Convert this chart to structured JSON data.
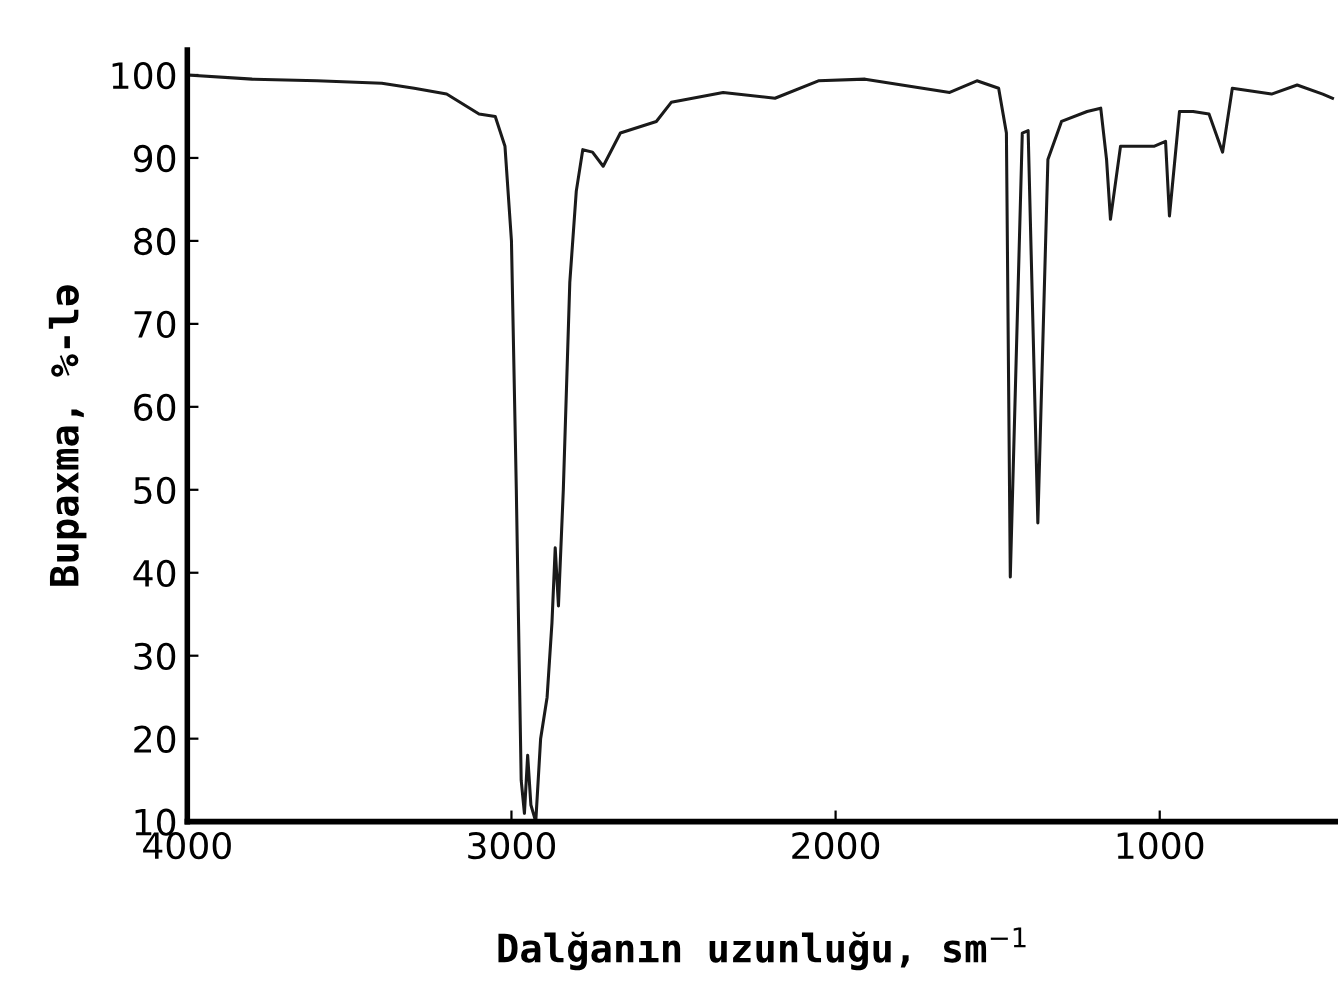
{
  "chart_data": {
    "type": "line",
    "xlabel": "Dalğanın uzunluğu, sm$^{−1}$",
    "ylabel": "Bupaxma, %-lə",
    "xlim": [
      4000,
      450
    ],
    "ylim": [
      10,
      103
    ],
    "xticks": [
      4000,
      3000,
      2000,
      1000
    ],
    "yticks": [
      10,
      20,
      30,
      40,
      50,
      60,
      70,
      80,
      90,
      100
    ],
    "grid": false,
    "legend": false,
    "marker": "none",
    "line_style": "solid",
    "series": [
      {
        "color": "#1a1a1a",
        "x": [
          4000,
          3800,
          3600,
          3400,
          3300,
          3200,
          3100,
          3050,
          3020,
          3000,
          2985,
          2970,
          2960,
          2950,
          2940,
          2925,
          2910,
          2890,
          2875,
          2865,
          2855,
          2840,
          2820,
          2800,
          2780,
          2750,
          2717,
          2664,
          2553,
          2507,
          2347,
          2187,
          2053,
          1909,
          1648,
          1564,
          1497,
          1473,
          1461,
          1424,
          1406,
          1376,
          1345,
          1303,
          1224,
          1182,
          1164,
          1152,
          1121,
          1018,
          982,
          970,
          939,
          897,
          848,
          806,
          776,
          655,
          576,
          497,
          467
        ],
        "values": [
          100,
          99.5,
          99.3,
          99,
          98.4,
          97.7,
          95.3,
          95,
          91.4,
          80,
          50,
          15,
          11,
          18,
          12,
          10,
          20,
          25,
          34,
          43,
          36,
          50,
          75,
          86,
          91,
          90.7,
          89,
          93,
          94.4,
          96.7,
          97.9,
          97.2,
          99.3,
          99.5,
          97.9,
          99.3,
          98.4,
          93,
          39.5,
          93,
          93.3,
          46,
          89.8,
          94.4,
          95.6,
          96,
          89.8,
          82.6,
          91.4,
          91.4,
          92,
          83,
          95.6,
          95.6,
          95.3,
          90.7,
          98.4,
          97.7,
          98.8,
          97.7,
          97.2
        ]
      }
    ]
  }
}
